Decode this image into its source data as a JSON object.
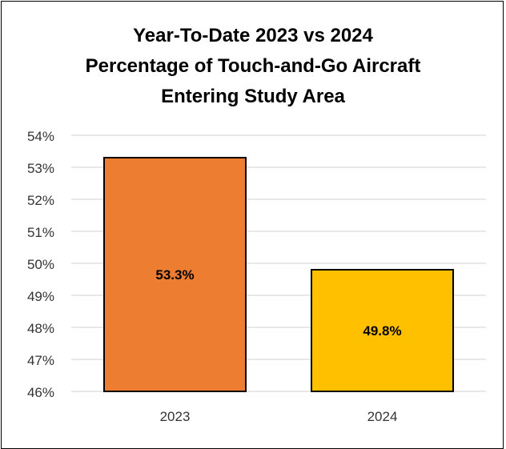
{
  "title_lines": [
    "Year-To-Date 2023 vs 2024",
    "Percentage of Touch-and-Go  Aircraft",
    "Entering Study Area"
  ],
  "chart_data": {
    "type": "bar",
    "title": "Year-To-Date 2023 vs 2024 Percentage of Touch-and-Go  Aircraft Entering Study Area",
    "categories": [
      "2023",
      "2024"
    ],
    "values": [
      53.3,
      49.8
    ],
    "data_labels": [
      "53.3%",
      "49.8%"
    ],
    "colors": [
      "#ED7D31",
      "#FFC000"
    ],
    "bar_outline": "#000000",
    "ylim": [
      46,
      54
    ],
    "yticks": [
      46,
      47,
      48,
      49,
      50,
      51,
      52,
      53,
      54
    ],
    "ytick_labels": [
      "46%",
      "47%",
      "48%",
      "49%",
      "50%",
      "51%",
      "52%",
      "53%",
      "54%"
    ],
    "grid": true,
    "grid_color": "#D9D9D9",
    "xlabel": "",
    "ylabel": ""
  }
}
